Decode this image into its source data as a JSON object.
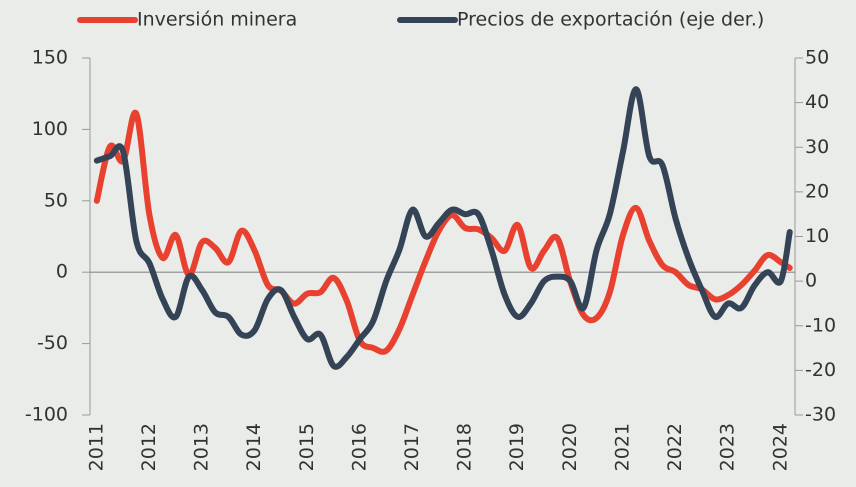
{
  "chart_data": {
    "type": "line",
    "x": [
      2011,
      2011.25,
      2011.5,
      2011.75,
      2012,
      2012.25,
      2012.5,
      2012.75,
      2013,
      2013.25,
      2013.5,
      2013.75,
      2014,
      2014.25,
      2014.5,
      2014.75,
      2015,
      2015.25,
      2015.5,
      2015.75,
      2016,
      2016.25,
      2016.5,
      2016.75,
      2017,
      2017.25,
      2017.5,
      2017.75,
      2018,
      2018.25,
      2018.5,
      2018.75,
      2019,
      2019.25,
      2019.5,
      2019.75,
      2020,
      2020.25,
      2020.5,
      2020.75,
      2021,
      2021.25,
      2021.5,
      2021.75,
      2022,
      2022.25,
      2022.5,
      2022.75,
      2023,
      2023.25,
      2023.5,
      2023.75,
      2024,
      2024.17
    ],
    "series": [
      {
        "name": "Inversión minera",
        "color": "#e8412f",
        "axis": "y",
        "values": [
          50,
          88,
          78,
          111,
          40,
          10,
          26,
          -2,
          21,
          17,
          7,
          29,
          15,
          -9,
          -13,
          -22,
          -15,
          -14,
          -4,
          -20,
          -48,
          -53,
          -55,
          -40,
          -16,
          8,
          29,
          40,
          31,
          30,
          24,
          15,
          33,
          3,
          15,
          24,
          -7,
          -30,
          -32,
          -14,
          26,
          45,
          22,
          5,
          0,
          -9,
          -12,
          -19,
          -16,
          -9,
          1,
          12,
          7,
          3
        ]
      },
      {
        "name": "Precios de exportación (eje der.)",
        "color": "#344456",
        "axis": "y2",
        "values": [
          27,
          28,
          29,
          9,
          4,
          -4,
          -8,
          1,
          -2,
          -7,
          -8,
          -12,
          -11,
          -4,
          -2,
          -8,
          -13,
          -12,
          -19,
          -17,
          -13,
          -9,
          0,
          7,
          16,
          10,
          13,
          16,
          15,
          15,
          7,
          -3,
          -8,
          -5,
          0,
          1,
          0,
          -6,
          7,
          15,
          29,
          43,
          28,
          26,
          14,
          5,
          -2,
          -8,
          -5,
          -6,
          -1,
          2,
          0,
          11
        ]
      }
    ],
    "xlim": [
      2010.87,
      2024.27
    ],
    "xticks": [
      2011,
      2012,
      2013,
      2014,
      2015,
      2016,
      2017,
      2018,
      2019,
      2020,
      2021,
      2022,
      2023,
      2024
    ],
    "ylim": [
      -100,
      150
    ],
    "yticks": [
      -100,
      -50,
      0,
      50,
      100,
      150
    ],
    "y2lim": [
      -30,
      50
    ],
    "y2ticks": [
      -30,
      -20,
      -10,
      0,
      10,
      20,
      30,
      40,
      50
    ]
  }
}
